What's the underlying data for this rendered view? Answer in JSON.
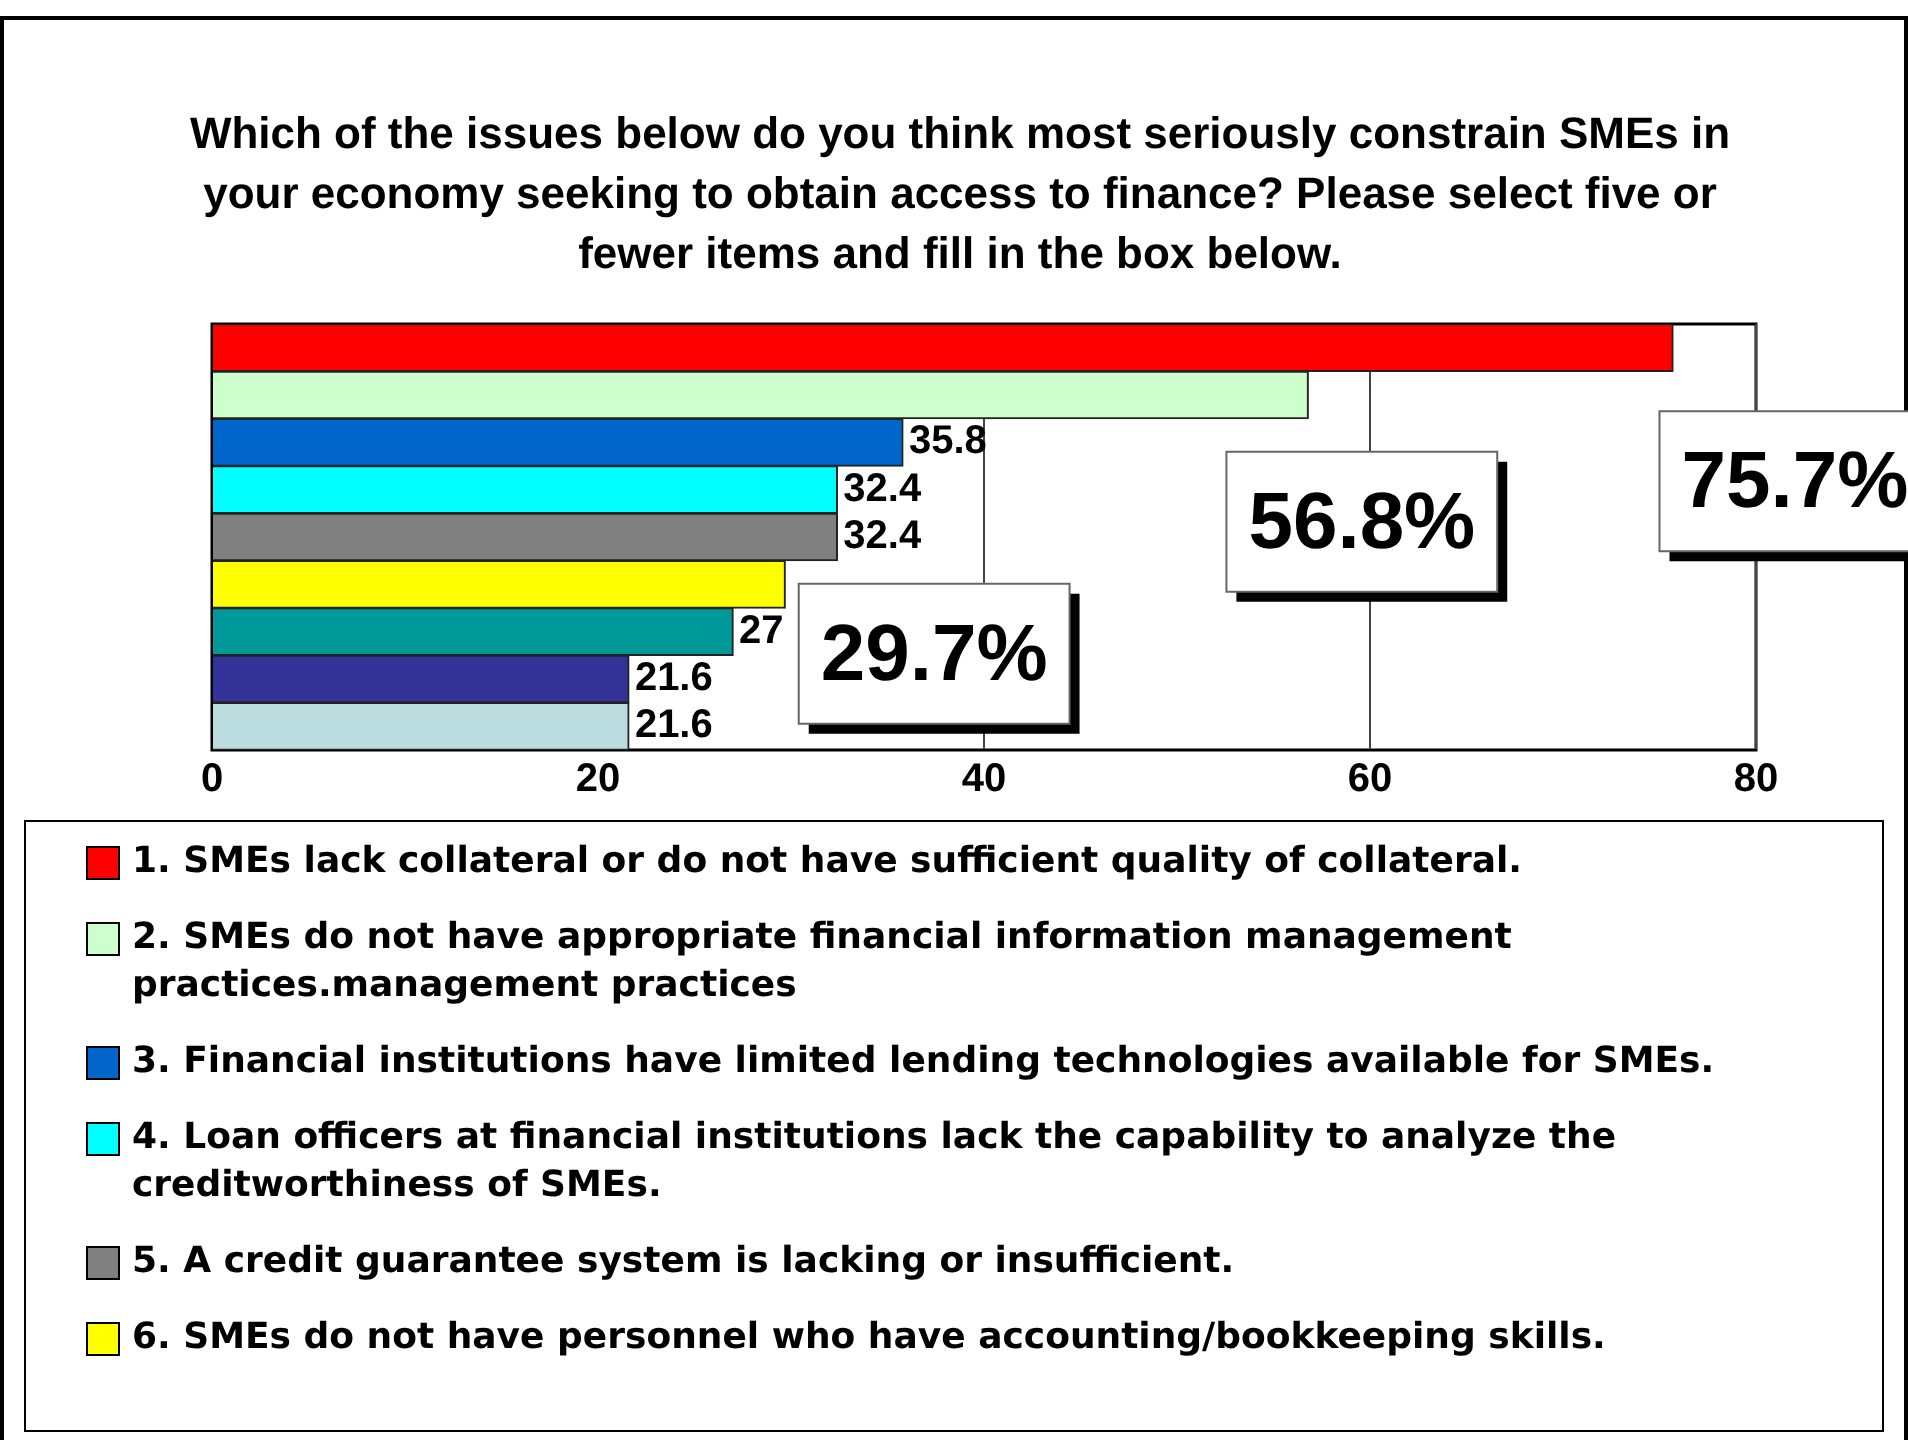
{
  "chart_data": {
    "type": "bar",
    "orientation": "horizontal",
    "title": "Which of the issues below do you think most seriously constrain SMEs in your economy seeking to obtain access to finance? Please select five or fewer items and fill in the box below.",
    "categories": [
      null
    ],
    "xlim": [
      0,
      80
    ],
    "xticks": [
      0,
      20,
      40,
      60,
      80
    ],
    "grid": "x",
    "legend": "bottom",
    "series": [
      {
        "name": "1. SMEs lack collateral or do not have sufficient quality of collateral.",
        "color": "#ff0000",
        "values": [
          75.7
        ]
      },
      {
        "name": "2. SMEs do not have appropriate financial information management practices.management practices",
        "color": "#ccffcc",
        "values": [
          56.8
        ]
      },
      {
        "name": "3. Financial institutions have limited lending technologies available for SMEs.",
        "color": "#0066cc",
        "values": [
          35.8
        ],
        "value_labels": [
          "35.8"
        ]
      },
      {
        "name": "4. Loan officers at financial institutions lack the capability to analyze the creditworthiness of SMEs.",
        "color": "#00ffff",
        "values": [
          32.4
        ],
        "value_labels": [
          "32.4"
        ]
      },
      {
        "name": "5. A credit guarantee system is lacking or insufficient.",
        "color": "#808080",
        "values": [
          32.4
        ],
        "value_labels": [
          "32.4"
        ]
      },
      {
        "name": "6. SMEs do not have personnel who have accounting/bookkeeping skills.",
        "color": "#ffff00",
        "values": [
          29.7
        ]
      },
      {
        "color": "#009999",
        "values": [
          27
        ],
        "value_labels": [
          "27"
        ]
      },
      {
        "color": "#333399",
        "values": [
          21.6
        ],
        "value_labels": [
          "21.6"
        ]
      },
      {
        "color": "#bbdde0",
        "values": [
          21.6
        ],
        "value_labels": [
          "21.6"
        ]
      }
    ],
    "annotations": [
      "75.7%",
      "56.8%",
      "29.7%"
    ]
  }
}
